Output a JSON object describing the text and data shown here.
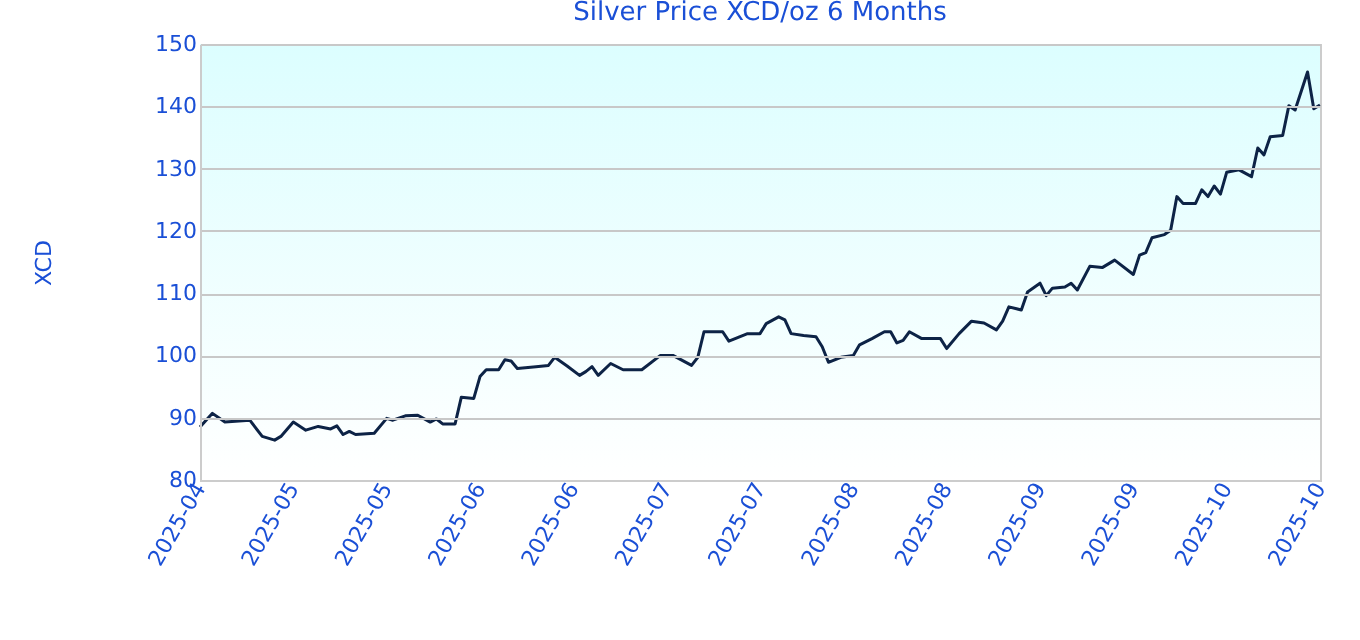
{
  "chart_data": {
    "type": "line",
    "title": "Silver Price XCD/oz 6 Months",
    "ylabel": "XCD",
    "x": [
      "2025-04-20",
      "2025-04-22",
      "2025-04-24",
      "2025-04-28",
      "2025-04-30",
      "2025-05-02",
      "2025-05-03",
      "2025-05-05",
      "2025-05-07",
      "2025-05-09",
      "2025-05-11",
      "2025-05-12",
      "2025-05-13",
      "2025-05-14",
      "2025-05-15",
      "2025-05-18",
      "2025-05-20",
      "2025-05-21",
      "2025-05-23",
      "2025-05-25",
      "2025-05-27",
      "2025-05-28",
      "2025-05-29",
      "2025-05-31",
      "2025-06-01",
      "2025-06-03",
      "2025-06-04",
      "2025-06-05",
      "2025-06-07",
      "2025-06-08",
      "2025-06-09",
      "2025-06-10",
      "2025-06-13",
      "2025-06-15",
      "2025-06-16",
      "2025-06-18",
      "2025-06-20",
      "2025-06-21",
      "2025-06-22",
      "2025-06-23",
      "2025-06-25",
      "2025-06-27",
      "2025-06-30",
      "2025-07-03",
      "2025-07-05",
      "2025-07-08",
      "2025-07-09",
      "2025-07-10",
      "2025-07-13",
      "2025-07-14",
      "2025-07-17",
      "2025-07-19",
      "2025-07-20",
      "2025-07-22",
      "2025-07-23",
      "2025-07-24",
      "2025-07-26",
      "2025-07-28",
      "2025-07-29",
      "2025-07-30",
      "2025-08-01",
      "2025-08-03",
      "2025-08-04",
      "2025-08-06",
      "2025-08-08",
      "2025-08-09",
      "2025-08-10",
      "2025-08-11",
      "2025-08-12",
      "2025-08-14",
      "2025-08-17",
      "2025-08-18",
      "2025-08-20",
      "2025-08-22",
      "2025-08-24",
      "2025-08-26",
      "2025-08-27",
      "2025-08-28",
      "2025-08-30",
      "2025-08-31",
      "2025-09-02",
      "2025-09-03",
      "2025-09-04",
      "2025-09-06",
      "2025-09-07",
      "2025-09-08",
      "2025-09-10",
      "2025-09-12",
      "2025-09-14",
      "2025-09-17",
      "2025-09-18",
      "2025-09-19",
      "2025-09-20",
      "2025-09-22",
      "2025-09-23",
      "2025-09-24",
      "2025-09-25",
      "2025-09-27",
      "2025-09-28",
      "2025-09-29",
      "2025-09-30",
      "2025-10-01",
      "2025-10-02",
      "2025-10-04",
      "2025-10-06",
      "2025-10-07",
      "2025-10-08",
      "2025-10-09",
      "2025-10-11",
      "2025-10-12",
      "2025-10-13",
      "2025-10-15",
      "2025-10-16",
      "2025-10-17"
    ],
    "series": [
      {
        "color": "#0d2346",
        "values": [
          88.5,
          90.7,
          89.3,
          89.6,
          87.0,
          86.4,
          87.0,
          89.3,
          88.0,
          88.6,
          88.2,
          88.7,
          87.3,
          87.8,
          87.3,
          87.5,
          89.9,
          89.6,
          90.3,
          90.4,
          89.3,
          89.8,
          89.0,
          89.0,
          93.3,
          93.1,
          96.6,
          97.7,
          97.7,
          99.3,
          99.1,
          97.9,
          98.2,
          98.4,
          99.7,
          98.3,
          96.8,
          97.4,
          98.2,
          96.8,
          98.7,
          97.7,
          97.7,
          100.0,
          100.0,
          98.4,
          99.7,
          103.8,
          103.8,
          102.3,
          103.5,
          103.5,
          105.1,
          106.2,
          105.7,
          103.5,
          103.2,
          103.0,
          101.4,
          98.9,
          99.7,
          100.0,
          101.7,
          102.7,
          103.8,
          103.8,
          102.0,
          102.4,
          103.8,
          102.7,
          102.7,
          101.1,
          103.5,
          105.5,
          105.2,
          104.1,
          105.5,
          107.8,
          107.3,
          110.2,
          111.6,
          109.6,
          110.8,
          111.0,
          111.6,
          110.5,
          114.3,
          114.1,
          115.3,
          113.0,
          116.1,
          116.5,
          118.9,
          119.4,
          120.1,
          125.5,
          124.4,
          124.4,
          126.6,
          125.5,
          127.2,
          125.9,
          129.4,
          129.8,
          128.7,
          133.3,
          132.2,
          135.1,
          135.3,
          140.1,
          139.4,
          145.5,
          139.6,
          140.2
        ]
      }
    ],
    "xlim": [
      "2025-04-20",
      "2025-10-17"
    ],
    "xticks": [
      {
        "value": "2025-04-20",
        "label": "2025-04"
      },
      {
        "value": "2025-05-05",
        "label": "2025-05"
      },
      {
        "value": "2025-05-20",
        "label": "2025-05"
      },
      {
        "value": "2025-06-04",
        "label": "2025-06"
      },
      {
        "value": "2025-06-19",
        "label": "2025-06"
      },
      {
        "value": "2025-07-04",
        "label": "2025-07"
      },
      {
        "value": "2025-07-19",
        "label": "2025-07"
      },
      {
        "value": "2025-08-03",
        "label": "2025-08"
      },
      {
        "value": "2025-08-18",
        "label": "2025-08"
      },
      {
        "value": "2025-09-02",
        "label": "2025-09"
      },
      {
        "value": "2025-09-17",
        "label": "2025-09"
      },
      {
        "value": "2025-10-02",
        "label": "2025-10"
      },
      {
        "value": "2025-10-17",
        "label": "2025-10"
      }
    ],
    "ylim": [
      80,
      150
    ],
    "yticks": [
      80,
      90,
      100,
      110,
      120,
      130,
      140,
      150
    ],
    "grid": "y",
    "marker": "none",
    "line_style": "solid"
  }
}
